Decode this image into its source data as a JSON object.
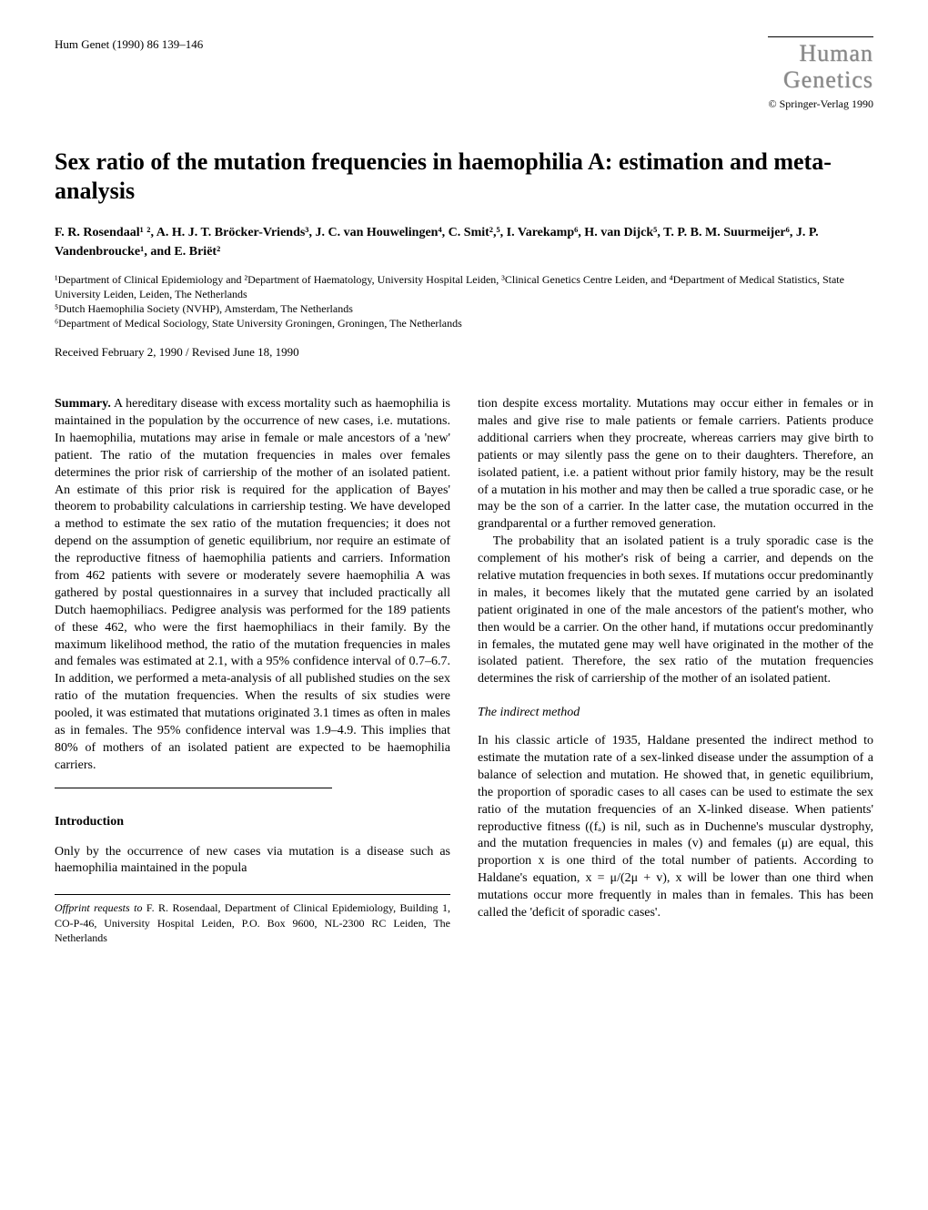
{
  "header": {
    "journal_ref": "Hum Genet (1990) 86 139–146",
    "journal_name_line1": "Human",
    "journal_name_line2": "Genetics",
    "copyright": "© Springer-Verlag 1990"
  },
  "title": "Sex ratio of the mutation frequencies in haemophilia A: estimation and meta-analysis",
  "authors": "F. R. Rosendaal¹ ², A. H. J. T. Bröcker-Vriends³, J. C. van Houwelingen⁴, C. Smit²,⁵, I. Varekamp⁶, H. van Dijck⁵, T. P. B. M. Suurmeijer⁶, J. P. Vandenbroucke¹, and E. Briët²",
  "affiliations": {
    "line1": "¹Department of Clinical Epidemiology and ²Department of Haematology, University Hospital Leiden, ³Clinical Genetics Centre Leiden, and ⁴Department of Medical Statistics, State University Leiden, Leiden, The Netherlands",
    "line2": "⁵Dutch Haemophilia Society (NVHP), Amsterdam, The Netherlands",
    "line3": "⁶Department of Medical Sociology, State University Groningen, Groningen, The Netherlands"
  },
  "received": "Received February 2, 1990 / Revised June 18, 1990",
  "summary": {
    "label": "Summary.",
    "text": " A hereditary disease with excess mortality such as haemophilia is maintained in the population by the occurrence of new cases, i.e. mutations. In haemophilia, mutations may arise in female or male ancestors of a 'new' patient. The ratio of the mutation frequencies in males over females determines the prior risk of carriership of the mother of an isolated patient. An estimate of this prior risk is required for the application of Bayes' theorem to probability calculations in carriership testing. We have developed a method to estimate the sex ratio of the mutation frequencies; it does not depend on the assumption of genetic equilibrium, nor require an estimate of the reproductive fitness of haemophilia patients and carriers. Information from 462 patients with severe or moderately severe haemophilia A was gathered by postal questionnaires in a survey that included practically all Dutch haemophiliacs. Pedigree analysis was performed for the 189 patients of these 462, who were the first haemophiliacs in their family. By the maximum likelihood method, the ratio of the mutation frequencies in males and females was estimated at 2.1, with a 95% confidence interval of 0.7–6.7. In addition, we performed a meta-analysis of all published studies on the sex ratio of the mutation frequencies. When the results of six studies were pooled, it was estimated that mutations originated 3.1 times as often in males as in females. The 95% confidence interval was 1.9–4.9. This implies that 80% of mothers of an isolated patient are expected to be haemophilia carriers."
  },
  "introduction": {
    "heading": "Introduction",
    "para1": "Only by the occurrence of new cases via mutation is a disease such as haemophilia maintained in the popula",
    "para1_cont": "tion despite excess mortality. Mutations may occur either in females or in males and give rise to male patients or female carriers. Patients produce additional carriers when they procreate, whereas carriers may give birth to patients or may silently pass the gene on to their daughters. Therefore, an isolated patient, i.e. a patient without prior family history, may be the result of a mutation in his mother and may then be called a true sporadic case, or he may be the son of a carrier. In the latter case, the mutation occurred in the grandparental or a further removed generation.",
    "para2": "The probability that an isolated patient is a truly sporadic case is the complement of his mother's risk of being a carrier, and depends on the relative mutation frequencies in both sexes. If mutations occur predominantly in males, it becomes likely that the mutated gene carried by an isolated patient originated in one of the male ancestors of the patient's mother, who then would be a carrier. On the other hand, if mutations occur predominantly in females, the mutated gene may well have originated in the mother of the isolated patient. Therefore, the sex ratio of the mutation frequencies determines the risk of carriership of the mother of an isolated patient."
  },
  "indirect": {
    "heading": "The indirect method",
    "para1": "In his classic article of 1935, Haldane presented the indirect method to estimate the mutation rate of a sex-linked disease under the assumption of a balance of selection and mutation. He showed that, in genetic equilibrium, the proportion of sporadic cases to all cases can be used to estimate the sex ratio of the mutation frequencies of an X-linked disease. When patients' reproductive fitness ((fₐ) is nil, such as in Duchenne's muscular dystrophy, and the mutation frequencies in males (v) and females (μ) are equal, this proportion x is one third of the total number of patients. According to Haldane's equation, x = μ/(2μ + v), x will be lower than one third when mutations occur more frequently in males than in females. This has been called the 'deficit of sporadic cases'."
  },
  "offprint": {
    "label": "Offprint requests to",
    "text": " F. R. Rosendaal, Department of Clinical Epidemiology, Building 1, CO-P-46, University Hospital Leiden, P.O. Box 9600, NL-2300 RC Leiden, The Netherlands"
  }
}
